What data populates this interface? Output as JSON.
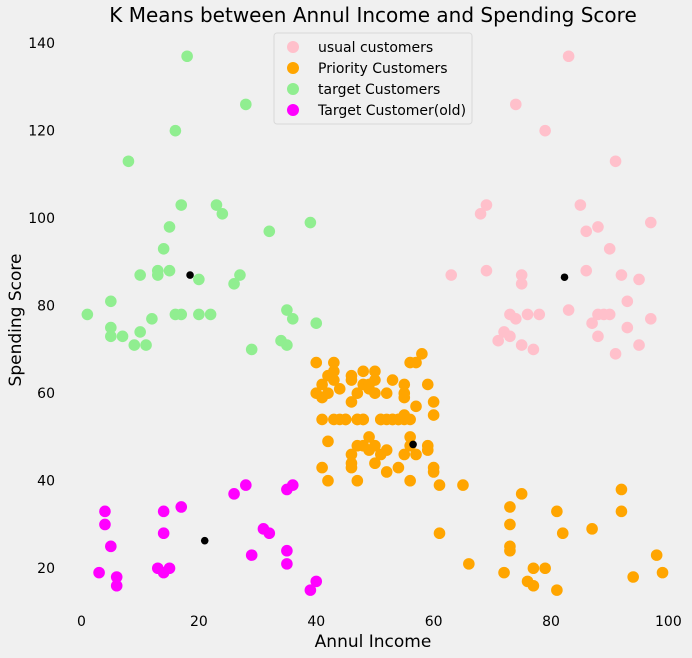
{
  "chart_data": {
    "type": "scatter",
    "title": "K Means between Annul Income and Spending Score",
    "xlabel": "Annul Income",
    "ylabel": "Spending Score",
    "xlim": [
      -4,
      103
    ],
    "ylim": [
      10,
      143
    ],
    "xticks": [
      0,
      20,
      40,
      60,
      80,
      100
    ],
    "yticks": [
      20,
      40,
      60,
      80,
      100,
      120,
      140
    ],
    "grid": false,
    "legend_position": "top-center",
    "series": [
      {
        "name": "usual customers",
        "color": "#ffc0cb",
        "points": [
          [
            63,
            87
          ],
          [
            68,
            101
          ],
          [
            69,
            103
          ],
          [
            69,
            88
          ],
          [
            71,
            72
          ],
          [
            72,
            74
          ],
          [
            73,
            78
          ],
          [
            73,
            73
          ],
          [
            74,
            77
          ],
          [
            75,
            71
          ],
          [
            75,
            85
          ],
          [
            75,
            87
          ],
          [
            76,
            78
          ],
          [
            77,
            70
          ],
          [
            78,
            78
          ],
          [
            79,
            120
          ],
          [
            83,
            137
          ],
          [
            83,
            79
          ],
          [
            85,
            103
          ],
          [
            86,
            97
          ],
          [
            86,
            88
          ],
          [
            87,
            76
          ],
          [
            88,
            78
          ],
          [
            88,
            73
          ],
          [
            88,
            98
          ],
          [
            89,
            78
          ],
          [
            90,
            78
          ],
          [
            90,
            93
          ],
          [
            91,
            113
          ],
          [
            91,
            69
          ],
          [
            92,
            87
          ],
          [
            93,
            81
          ],
          [
            93,
            75
          ],
          [
            95,
            86
          ],
          [
            95,
            71
          ],
          [
            97,
            99
          ],
          [
            97,
            77
          ],
          [
            74,
            126
          ]
        ]
      },
      {
        "name": "Priority Customers",
        "color": "#ffa500",
        "points": [
          [
            40,
            60
          ],
          [
            40,
            67
          ],
          [
            41,
            43
          ],
          [
            41,
            62
          ],
          [
            41,
            59
          ],
          [
            41,
            54
          ],
          [
            42,
            40
          ],
          [
            42,
            60
          ],
          [
            42,
            49
          ],
          [
            42,
            64
          ],
          [
            43,
            54
          ],
          [
            43,
            63
          ],
          [
            43,
            65
          ],
          [
            43,
            67
          ],
          [
            44,
            61
          ],
          [
            45,
            54
          ],
          [
            46,
            43
          ],
          [
            46,
            44
          ],
          [
            46,
            58
          ],
          [
            46,
            64
          ],
          [
            46,
            46
          ],
          [
            46,
            63
          ],
          [
            47,
            54
          ],
          [
            47,
            40
          ],
          [
            47,
            48
          ],
          [
            47,
            60
          ],
          [
            48,
            62
          ],
          [
            48,
            54
          ],
          [
            48,
            48
          ],
          [
            48,
            65
          ],
          [
            49,
            50
          ],
          [
            49,
            62
          ],
          [
            49,
            47
          ],
          [
            49,
            61
          ],
          [
            50,
            60
          ],
          [
            50,
            65
          ],
          [
            50,
            48
          ],
          [
            50,
            44
          ],
          [
            50,
            63
          ],
          [
            51,
            54
          ],
          [
            51,
            46
          ],
          [
            52,
            47
          ],
          [
            52,
            60
          ],
          [
            52,
            42
          ],
          [
            52,
            54
          ],
          [
            53,
            54
          ],
          [
            53,
            63
          ],
          [
            54,
            54
          ],
          [
            54,
            43
          ],
          [
            55,
            59
          ],
          [
            55,
            60
          ],
          [
            55,
            62
          ],
          [
            55,
            46
          ],
          [
            55,
            54
          ],
          [
            56,
            40
          ],
          [
            56,
            48
          ],
          [
            56,
            67
          ],
          [
            56,
            50
          ],
          [
            57,
            46
          ],
          [
            57,
            57
          ],
          [
            57,
            67
          ],
          [
            58,
            69
          ],
          [
            59,
            62
          ],
          [
            59,
            48
          ],
          [
            59,
            47
          ],
          [
            60,
            55
          ],
          [
            60,
            58
          ],
          [
            60,
            43
          ],
          [
            60,
            42
          ],
          [
            61,
            39
          ],
          [
            61,
            28
          ],
          [
            65,
            39
          ],
          [
            66,
            21
          ],
          [
            72,
            19
          ],
          [
            73,
            34
          ],
          [
            73,
            25
          ],
          [
            73,
            30
          ],
          [
            73,
            24
          ],
          [
            75,
            37
          ],
          [
            76,
            17
          ],
          [
            77,
            16
          ],
          [
            77,
            20
          ],
          [
            79,
            20
          ],
          [
            81,
            15
          ],
          [
            81,
            33
          ],
          [
            82,
            28
          ],
          [
            87,
            29
          ],
          [
            92,
            38
          ],
          [
            92,
            33
          ],
          [
            94,
            18
          ],
          [
            98,
            23
          ],
          [
            99,
            19
          ],
          [
            54,
            54
          ],
          [
            55,
            55
          ],
          [
            56,
            54
          ],
          [
            51,
            54
          ],
          [
            53,
            54
          ],
          [
            44,
            54
          ],
          [
            45,
            54
          ],
          [
            47,
            54
          ],
          [
            48,
            54
          ]
        ]
      },
      {
        "name": "target Customers",
        "color": "#90ee90",
        "points": [
          [
            1,
            78
          ],
          [
            5,
            81
          ],
          [
            5,
            75
          ],
          [
            5,
            73
          ],
          [
            7,
            73
          ],
          [
            9,
            71
          ],
          [
            10,
            74
          ],
          [
            10,
            87
          ],
          [
            11,
            71
          ],
          [
            12,
            77
          ],
          [
            13,
            88
          ],
          [
            13,
            87
          ],
          [
            14,
            93
          ],
          [
            15,
            88
          ],
          [
            15,
            98
          ],
          [
            16,
            78
          ],
          [
            17,
            103
          ],
          [
            17,
            78
          ],
          [
            18,
            137
          ],
          [
            16,
            120
          ],
          [
            20,
            86
          ],
          [
            20,
            78
          ],
          [
            22,
            78
          ],
          [
            23,
            103
          ],
          [
            24,
            101
          ],
          [
            26,
            85
          ],
          [
            27,
            87
          ],
          [
            28,
            126
          ],
          [
            29,
            70
          ],
          [
            32,
            97
          ],
          [
            34,
            72
          ],
          [
            35,
            79
          ],
          [
            35,
            71
          ],
          [
            36,
            77
          ],
          [
            39,
            99
          ],
          [
            40,
            76
          ],
          [
            8,
            113
          ]
        ]
      },
      {
        "name": "Target Customer(old)",
        "color": "#ff00ff",
        "points": [
          [
            3,
            19
          ],
          [
            4,
            33
          ],
          [
            4,
            30
          ],
          [
            5,
            25
          ],
          [
            6,
            18
          ],
          [
            6,
            16
          ],
          [
            13,
            20
          ],
          [
            14,
            33
          ],
          [
            14,
            28
          ],
          [
            14,
            19
          ],
          [
            15,
            20
          ],
          [
            17,
            34
          ],
          [
            26,
            37
          ],
          [
            28,
            39
          ],
          [
            29,
            23
          ],
          [
            31,
            29
          ],
          [
            32,
            28
          ],
          [
            35,
            38
          ],
          [
            35,
            24
          ],
          [
            35,
            21
          ],
          [
            36,
            39
          ],
          [
            39,
            15
          ],
          [
            40,
            17
          ]
        ]
      },
      {
        "name": "",
        "color": "#000000",
        "points": [
          [
            18.5,
            87
          ],
          [
            21,
            26.3
          ],
          [
            56.5,
            48.3
          ],
          [
            82.3,
            86.5
          ]
        ]
      }
    ]
  }
}
